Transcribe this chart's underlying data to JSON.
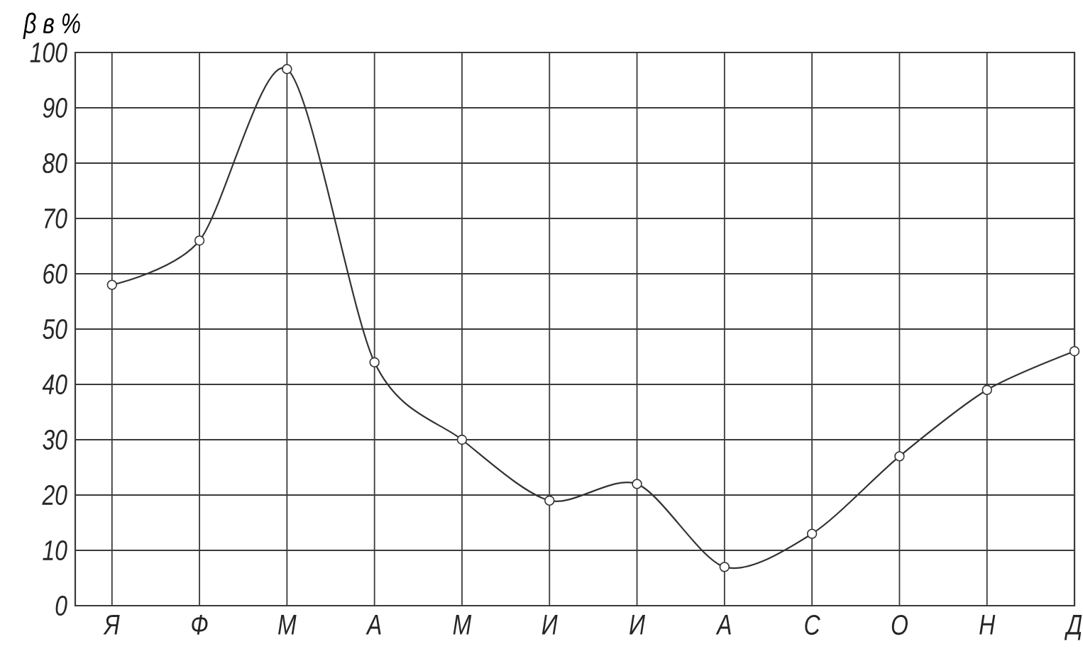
{
  "chart_data": {
    "type": "line",
    "ylabel": "β в %",
    "categories": [
      "Я",
      "Ф",
      "М",
      "А",
      "М",
      "И",
      "И",
      "А",
      "С",
      "О",
      "Н",
      "Д"
    ],
    "values": [
      58,
      66,
      97,
      44,
      30,
      19,
      22,
      7,
      13,
      27,
      39,
      46
    ],
    "color": "#333333",
    "ylim": [
      0,
      100
    ],
    "yticks": [
      0,
      10,
      20,
      30,
      40,
      50,
      60,
      70,
      80,
      90,
      100
    ],
    "grid": true,
    "marker": "circle",
    "line_style": "solid"
  }
}
